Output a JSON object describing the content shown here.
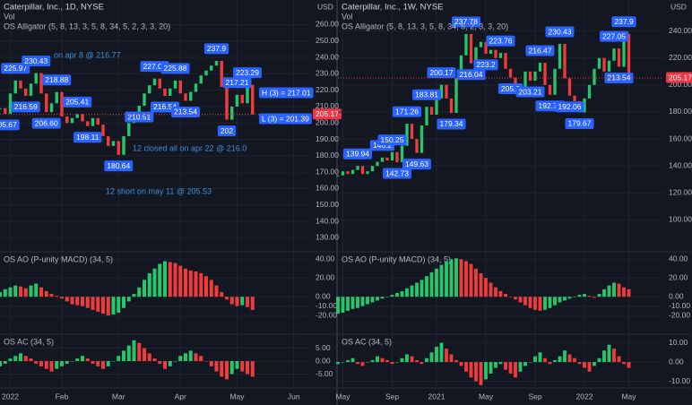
{
  "chart_data": [
    {
      "type": "candlestick",
      "title": "Caterpillar, Inc., 1D, NYSE",
      "subtitle": "Vol",
      "indicator": "OS Alligator (5, 8, 13, 3, 5, 8, 34, 5, 2, 3, 3, 20)",
      "currency": "USD",
      "up_color": "#26c66b",
      "down_color": "#ef3b3b",
      "label_color": "#2962ff",
      "last_color": "#f23645",
      "grid": true,
      "values": [
        209,
        205.67,
        218,
        225.97,
        221,
        216.59,
        224,
        230.43,
        218,
        206.6,
        212,
        218.88,
        204,
        200,
        203,
        205.41,
        201,
        198.11,
        203,
        199,
        192,
        186,
        189,
        180.64,
        192,
        200,
        206,
        210.51,
        218,
        223,
        227.09,
        221,
        216.54,
        221,
        225.88,
        218,
        213.54,
        219,
        224,
        229,
        232,
        235,
        237.9,
        222,
        202,
        210,
        217.21,
        212,
        223.29,
        205.17
      ],
      "value_labels": [
        null,
        "205.67",
        null,
        "225.97",
        null,
        "216.59",
        null,
        "230.43",
        null,
        "206.60",
        null,
        "218.88",
        null,
        null,
        null,
        "205.41",
        null,
        "198.11",
        null,
        null,
        null,
        null,
        null,
        "180.64",
        null,
        null,
        null,
        "210.51",
        null,
        null,
        "227.09",
        null,
        "216.54",
        null,
        "225.88",
        null,
        "213.54",
        null,
        null,
        null,
        null,
        null,
        "237.9",
        null,
        "202",
        null,
        "217.21",
        null,
        "223.29",
        "205.17"
      ],
      "ylim": [
        122,
        275
      ],
      "yticks": [
        {
          "value": 130,
          "label": "130.00"
        },
        {
          "value": 140,
          "label": "140.00"
        },
        {
          "value": 150,
          "label": "150.00"
        },
        {
          "value": 160,
          "label": "160.00"
        },
        {
          "value": 170,
          "label": "170.00"
        },
        {
          "value": 180,
          "label": "180.00"
        },
        {
          "value": 190,
          "label": "190.00"
        },
        {
          "value": 200,
          "label": "200.00"
        },
        {
          "value": 210,
          "label": "210.00"
        },
        {
          "value": 220,
          "label": "220.00"
        },
        {
          "value": 230,
          "label": "230.00"
        },
        {
          "value": 240,
          "label": "240.00"
        },
        {
          "value": 250,
          "label": "250.00"
        },
        {
          "value": 260,
          "label": "260.00"
        }
      ],
      "xlim": [
        0,
        60
      ],
      "xticks": [
        {
          "value": 2,
          "label": "2022"
        },
        {
          "value": 12,
          "label": "Feb"
        },
        {
          "value": 23,
          "label": "Mar"
        },
        {
          "value": 35,
          "label": "Apr"
        },
        {
          "value": 46,
          "label": "May"
        },
        {
          "value": 57,
          "label": "Jun"
        }
      ],
      "annotations": [
        "H (3) = 217.01",
        "L (3) = 201.39",
        "12 closed all on apr 22 @ 216.0",
        "12 short on may 11 @ 205.53",
        "on apr 8 @ 216.77"
      ],
      "ao": {
        "title": "OS AO (P-unity MACD) (34, 5)",
        "values": [
          5,
          8,
          10,
          12,
          11,
          9,
          12,
          14,
          10,
          6,
          3,
          1,
          -2,
          -5,
          -8,
          -9,
          -10,
          -12,
          -14,
          -16,
          -18,
          -20,
          -19,
          -17,
          -12,
          -5,
          3,
          10,
          18,
          25,
          30,
          35,
          38,
          37,
          36,
          33,
          30,
          28,
          27,
          25,
          22,
          18,
          12,
          5,
          -3,
          -8,
          -10,
          -9,
          -11,
          -14
        ],
        "ylim": [
          -39,
          47
        ],
        "yticks": [
          {
            "value": 40,
            "label": "40.00"
          },
          {
            "value": 20,
            "label": "20.00"
          },
          {
            "value": 0,
            "label": "0.00"
          },
          {
            "value": -10,
            "label": "-10.00"
          },
          {
            "value": -20,
            "label": "-20.00"
          }
        ]
      },
      "ac": {
        "title": "OS AC (34, 5)",
        "values": [
          -2,
          -1,
          1,
          2,
          3,
          2,
          1,
          -1,
          -2,
          -3,
          -4,
          -3,
          -2,
          -1,
          0,
          1,
          2,
          1,
          -1,
          -2,
          -3,
          -2,
          0,
          2,
          4,
          6,
          8,
          7,
          5,
          3,
          1,
          -1,
          -3,
          -2,
          0,
          2,
          3,
          4,
          3,
          2,
          0,
          -2,
          -4,
          -6,
          -7,
          -5,
          -3,
          -4,
          -5,
          -6
        ],
        "ylim": [
          -10,
          10
        ],
        "yticks": [
          {
            "value": 5,
            "label": "5.00"
          },
          {
            "value": 0,
            "label": "0.00"
          },
          {
            "value": -5,
            "label": "-5.00"
          }
        ]
      }
    },
    {
      "type": "candlestick",
      "title": "Caterpillar, Inc., 1W, NYSE",
      "subtitle": "Vol",
      "indicator": "OS Alligator (5, 8, 13, 3, 5, 8, 34, 5, 2, 3, 3, 20)",
      "currency": "USD",
      "up_color": "#26c66b",
      "down_color": "#ef3b3b",
      "label_color": "#2962ff",
      "last_color": "#f23645",
      "grid": true,
      "values": [
        133,
        136,
        134,
        137,
        139.94,
        134,
        136,
        140,
        143,
        146.2,
        144,
        150.25,
        142.73,
        155,
        171.26,
        160,
        149.63,
        170,
        183.81,
        178,
        190,
        200.17,
        190,
        179.34,
        205,
        222,
        237.78,
        216.04,
        228,
        232,
        223.2,
        226,
        220,
        223.76,
        212,
        205.5,
        200,
        198,
        210,
        203.21,
        210,
        216.47,
        200,
        192.72,
        212,
        230.43,
        205,
        192.06,
        188,
        179.67,
        190,
        200,
        212,
        220,
        210,
        218,
        227.05,
        213.54,
        237.9,
        205.17
      ],
      "value_labels": [
        null,
        null,
        null,
        null,
        "139.94",
        null,
        null,
        null,
        null,
        "146.2",
        null,
        "150.25",
        "142.73",
        null,
        "171.26",
        null,
        "149.63",
        null,
        "183.81",
        null,
        null,
        "200.17",
        null,
        "179.34",
        null,
        null,
        "237.78",
        "216.04",
        null,
        null,
        "223.2",
        null,
        null,
        "223.76",
        null,
        "205.5",
        null,
        null,
        null,
        "203.21",
        null,
        "216.47",
        null,
        "192.72",
        null,
        "230.43",
        null,
        "192.06",
        null,
        "179.67",
        null,
        null,
        null,
        null,
        null,
        null,
        "227.05",
        "213.54",
        "237.9",
        "205.17"
      ],
      "ylim": [
        77,
        263
      ],
      "yticks": [
        {
          "value": 100,
          "label": "100.00"
        },
        {
          "value": 120,
          "label": "120.00"
        },
        {
          "value": 140,
          "label": "140.00"
        },
        {
          "value": 160,
          "label": "160.00"
        },
        {
          "value": 180,
          "label": "180.00"
        },
        {
          "value": 200,
          "label": "200.00"
        },
        {
          "value": 220,
          "label": "220.00"
        },
        {
          "value": 240,
          "label": "240.00"
        }
      ],
      "xlim": [
        0,
        66
      ],
      "xticks": [
        {
          "value": 1,
          "label": "May"
        },
        {
          "value": 11,
          "label": "Sep"
        },
        {
          "value": 20,
          "label": "2021"
        },
        {
          "value": 30,
          "label": "May"
        },
        {
          "value": 40,
          "label": "Sep"
        },
        {
          "value": 50,
          "label": "2022"
        },
        {
          "value": 59,
          "label": "May"
        }
      ],
      "ao": {
        "title": "OS AO (P-unity MACD) (34, 5)",
        "values": [
          -18,
          -17,
          -15,
          -13,
          -12,
          -10,
          -8,
          -6,
          -4,
          -2,
          0,
          2,
          4,
          6,
          9,
          12,
          15,
          18,
          22,
          26,
          30,
          34,
          38,
          40,
          41,
          40,
          38,
          35,
          30,
          25,
          20,
          15,
          10,
          6,
          3,
          0,
          -3,
          -6,
          -9,
          -12,
          -14,
          -15,
          -14,
          -12,
          -9,
          -6,
          -4,
          -2,
          0,
          2,
          3,
          1,
          -1,
          3,
          8,
          12,
          15,
          14,
          10,
          8
        ],
        "ylim": [
          -39,
          47
        ],
        "yticks": [
          {
            "value": 40,
            "label": "40.00"
          },
          {
            "value": 20,
            "label": "20.00"
          },
          {
            "value": 0,
            "label": "0.00"
          },
          {
            "value": -10,
            "label": "-10.00"
          },
          {
            "value": -20,
            "label": "-20.00"
          }
        ]
      },
      "ac": {
        "title": "OS AC (34, 5)",
        "values": [
          -1,
          0,
          1,
          2,
          -1,
          -2,
          0,
          1,
          3,
          2,
          1,
          -1,
          0,
          2,
          4,
          3,
          1,
          -1,
          2,
          5,
          8,
          10,
          7,
          4,
          1,
          -2,
          -5,
          -8,
          -10,
          -12,
          -9,
          -6,
          -3,
          -1,
          -4,
          -6,
          -8,
          -5,
          -2,
          0,
          3,
          5,
          2,
          -1,
          1,
          3,
          6,
          4,
          2,
          -1,
          -3,
          -5,
          -2,
          2,
          6,
          9,
          7,
          3,
          -1,
          -3
        ],
        "ylim": [
          -13,
          14
        ],
        "yticks": [
          {
            "value": 10,
            "label": "10.00"
          },
          {
            "value": 0,
            "label": "0.00"
          },
          {
            "value": -10,
            "label": "-10.00"
          }
        ]
      }
    }
  ]
}
